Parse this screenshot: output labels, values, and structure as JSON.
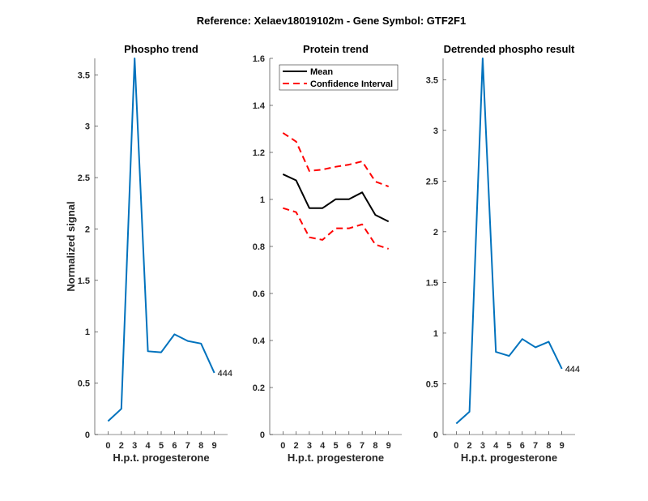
{
  "figure_title": "Reference:  Xelaev18019102m - Gene Symbol:  GTF2F1",
  "chart_data": [
    {
      "type": "line",
      "title": "Phospho trend",
      "xlabel": "H.p.t. progesterone",
      "ylabel": "Normalized signal",
      "x_tick_labels": [
        "0",
        "2",
        "3",
        "4",
        "5",
        "6",
        "7",
        "8",
        "9"
      ],
      "y_tick_labels": [
        "0",
        "0.5",
        "1",
        "1.5",
        "2",
        "2.5",
        "3",
        "3.5"
      ],
      "y_ticks": [
        0,
        0.5,
        1,
        1.5,
        2,
        2.5,
        3,
        3.5
      ],
      "xlim": [
        0,
        10
      ],
      "ylim": [
        0,
        3.66
      ],
      "grid": false,
      "series": [
        {
          "name": "Phospho",
          "color": "#0072BD",
          "style": "solid",
          "x": [
            1,
            2,
            3,
            4,
            5,
            6,
            7,
            8,
            9
          ],
          "values": [
            0.13,
            0.25,
            3.66,
            0.81,
            0.8,
            0.975,
            0.91,
            0.885,
            0.6
          ]
        }
      ],
      "annotation": {
        "text": "444",
        "x": 9,
        "y": 0.6
      }
    },
    {
      "type": "line",
      "title": "Protein trend",
      "xlabel": "H.p.t. progesterone",
      "ylabel": "",
      "x_tick_labels": [
        "0",
        "2",
        "3",
        "4",
        "5",
        "6",
        "7",
        "8",
        "9"
      ],
      "y_tick_labels": [
        "0",
        "0.2",
        "0.4",
        "0.6",
        "0.8",
        "1",
        "1.2",
        "1.4",
        "1.6"
      ],
      "y_ticks": [
        0,
        0.2,
        0.4,
        0.6,
        0.8,
        1.0,
        1.2,
        1.4,
        1.6
      ],
      "xlim": [
        0,
        10
      ],
      "ylim": [
        0,
        1.6
      ],
      "grid": false,
      "legend": {
        "position": "top-left",
        "entries": [
          "Mean",
          "Confidence Interval"
        ]
      },
      "series": [
        {
          "name": "Mean",
          "color": "#000000",
          "style": "solid",
          "x": [
            1,
            2,
            3,
            4,
            5,
            6,
            7,
            8,
            9
          ],
          "values": [
            1.107,
            1.081,
            0.963,
            0.963,
            1.001,
            1.001,
            1.03,
            0.934,
            0.906
          ]
        },
        {
          "name": "Confidence Interval",
          "color": "#FF0000",
          "style": "dashed",
          "x": [
            1,
            2,
            3,
            4,
            5,
            6,
            7,
            8,
            9
          ],
          "values": [
            1.283,
            1.246,
            1.121,
            1.127,
            1.139,
            1.148,
            1.162,
            1.076,
            1.055
          ]
        },
        {
          "name": "Confidence Interval (lower)",
          "color": "#FF0000",
          "style": "dashed",
          "x": [
            1,
            2,
            3,
            4,
            5,
            6,
            7,
            8,
            9
          ],
          "values": [
            0.963,
            0.946,
            0.839,
            0.828,
            0.877,
            0.877,
            0.894,
            0.808,
            0.79
          ]
        }
      ]
    },
    {
      "type": "line",
      "title": "Detrended phospho result",
      "xlabel": "H.p.t. progesterone",
      "ylabel": "",
      "x_tick_labels": [
        "0",
        "2",
        "3",
        "4",
        "5",
        "6",
        "7",
        "8",
        "9"
      ],
      "y_tick_labels": [
        "0",
        "0.5",
        "1",
        "1.5",
        "2",
        "2.5",
        "3",
        "3.5"
      ],
      "y_ticks": [
        0,
        0.5,
        1,
        1.5,
        2,
        2.5,
        3,
        3.5
      ],
      "xlim": [
        0,
        10
      ],
      "ylim": [
        0,
        3.71
      ],
      "grid": false,
      "series": [
        {
          "name": "Detrended phospho",
          "color": "#0072BD",
          "style": "solid",
          "x": [
            1,
            2,
            3,
            4,
            5,
            6,
            7,
            8,
            9
          ],
          "values": [
            0.108,
            0.225,
            3.71,
            0.815,
            0.775,
            0.942,
            0.86,
            0.915,
            0.648
          ]
        }
      ],
      "annotation": {
        "text": "444",
        "x": 9,
        "y": 0.648
      }
    }
  ]
}
